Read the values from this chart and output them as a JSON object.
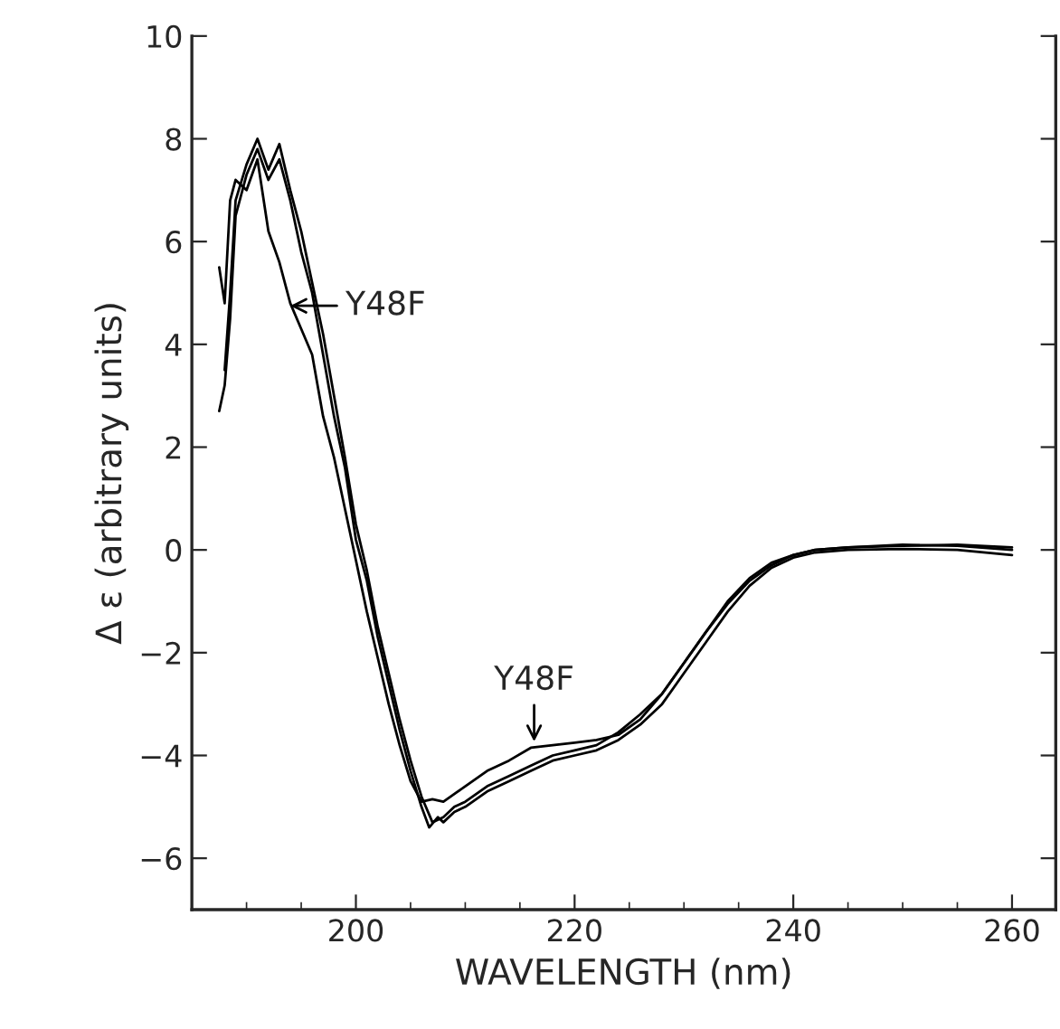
{
  "chart_data": {
    "type": "line",
    "xlabel": "WAVELENGTH (nm)",
    "ylabel": "Δ ε (arbitrary units)",
    "xlim": [
      185,
      264
    ],
    "ylim": [
      -7,
      10
    ],
    "xticks": [
      200,
      220,
      240,
      260
    ],
    "yticks": [
      -6,
      -4,
      -2,
      0,
      2,
      4,
      6,
      8,
      10
    ],
    "grid": false,
    "legend": false,
    "marker": "none",
    "line_style": "solid",
    "series": [
      {
        "color": "#000000",
        "x": [
          187.5,
          188,
          188.5,
          189,
          190,
          191,
          192,
          193,
          194,
          195,
          196,
          197,
          198,
          199,
          200,
          201,
          202,
          203,
          204,
          205,
          206,
          207,
          208,
          209.2,
          210,
          212,
          214,
          216,
          218,
          220,
          222,
          224,
          226,
          228,
          230,
          232,
          234,
          236,
          238,
          240,
          242,
          245,
          250,
          255,
          260
        ],
        "values": [
          5.5,
          4.8,
          6.8,
          7.2,
          7.0,
          7.6,
          6.2,
          5.6,
          4.8,
          4.3,
          3.8,
          2.6,
          1.8,
          0.8,
          -0.2,
          -1.2,
          -2.1,
          -3.0,
          -3.8,
          -4.5,
          -4.9,
          -4.85,
          -4.9,
          -4.72,
          -4.6,
          -4.3,
          -4.1,
          -3.85,
          -3.8,
          -3.75,
          -3.7,
          -3.6,
          -3.3,
          -2.8,
          -2.2,
          -1.6,
          -1.0,
          -0.55,
          -0.25,
          -0.1,
          0.0,
          0.05,
          0.08,
          0.1,
          0.05
        ]
      },
      {
        "color": "#000000",
        "x": [
          187.5,
          188,
          188.5,
          189,
          190,
          191,
          192,
          193,
          194,
          195,
          196,
          197,
          198,
          199,
          200,
          201,
          202,
          203,
          204,
          205,
          206,
          206.7,
          207.5,
          208,
          209,
          210,
          212,
          214,
          216,
          218,
          220,
          222,
          224,
          226,
          228,
          230,
          232,
          234,
          236,
          238,
          240,
          242,
          245,
          250,
          255,
          260
        ],
        "values": [
          2.7,
          3.2,
          4.5,
          6.5,
          7.3,
          7.8,
          7.2,
          7.6,
          6.8,
          5.8,
          5.0,
          3.8,
          2.6,
          1.6,
          0.2,
          -0.6,
          -1.7,
          -2.6,
          -3.5,
          -4.3,
          -5.0,
          -5.4,
          -5.2,
          -5.3,
          -5.1,
          -5.0,
          -4.7,
          -4.5,
          -4.3,
          -4.1,
          -4.0,
          -3.9,
          -3.7,
          -3.4,
          -3.0,
          -2.4,
          -1.8,
          -1.2,
          -0.7,
          -0.35,
          -0.15,
          -0.05,
          0.0,
          0.02,
          0.0,
          -0.1
        ]
      },
      {
        "color": "#000000",
        "x": [
          188,
          188.5,
          189,
          190,
          191,
          192,
          193,
          194,
          195,
          196,
          197,
          198,
          199,
          200,
          201,
          202,
          203,
          204,
          205,
          206,
          207,
          208,
          209,
          210,
          212,
          214,
          216,
          218,
          220,
          222,
          224,
          226,
          228,
          230,
          232,
          234,
          236,
          238,
          240,
          242,
          245,
          250,
          255,
          260
        ],
        "values": [
          3.5,
          5.0,
          6.8,
          7.5,
          8.0,
          7.4,
          7.9,
          7.0,
          6.2,
          5.2,
          4.2,
          3.0,
          1.8,
          0.5,
          -0.4,
          -1.5,
          -2.4,
          -3.3,
          -4.1,
          -4.8,
          -5.3,
          -5.2,
          -5.0,
          -4.9,
          -4.6,
          -4.4,
          -4.2,
          -4.0,
          -3.9,
          -3.8,
          -3.55,
          -3.2,
          -2.8,
          -2.2,
          -1.6,
          -1.05,
          -0.6,
          -0.3,
          -0.1,
          0.0,
          0.05,
          0.1,
          0.08,
          0.0
        ]
      }
    ],
    "annotations": [
      {
        "text": "Y48F",
        "x": 194,
        "y": 4.75
      },
      {
        "text": "Y48F",
        "x": 216.3,
        "y": -3.73
      }
    ]
  }
}
